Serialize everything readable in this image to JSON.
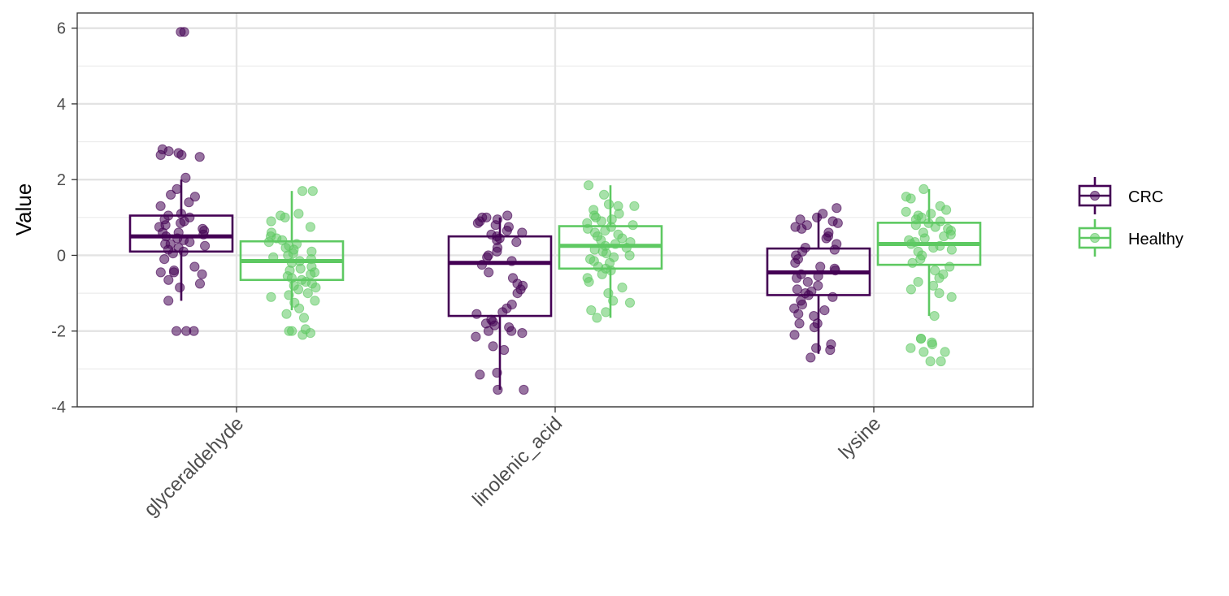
{
  "chart_data": {
    "type": "boxplot",
    "title": "",
    "xlabel": "",
    "ylabel": "Value",
    "ylim": [
      -4,
      6.4
    ],
    "yticks": [
      -4,
      -2,
      0,
      2,
      4,
      6
    ],
    "ytick_labels": [
      "-4",
      "-2",
      "0",
      "2",
      "4",
      "6"
    ],
    "grid": true,
    "legend_position": "right",
    "categories": [
      "glyceraldehyde",
      "linolenic_acid",
      "lysine"
    ],
    "series": [
      {
        "name": "CRC",
        "color": "#440154",
        "boxes": [
          {
            "category": "glyceraldehyde",
            "whisker_low": -1.2,
            "q1": 0.1,
            "median": 0.5,
            "q3": 1.05,
            "whisker_high": 2.0
          },
          {
            "category": "linolenic_acid",
            "whisker_low": -3.55,
            "q1": -1.6,
            "median": -0.2,
            "q3": 0.5,
            "whisker_high": 1.0
          },
          {
            "category": "lysine",
            "whisker_low": -2.6,
            "q1": -1.05,
            "median": -0.45,
            "q3": 0.18,
            "whisker_high": 1.1
          }
        ],
        "points": [
          [
            5.9,
            5.9,
            2.8,
            2.75,
            2.7,
            2.65,
            2.65,
            2.6,
            2.05,
            1.75,
            1.6,
            1.55,
            1.4,
            1.3,
            1.1,
            1.05,
            1.0,
            0.95,
            0.9,
            0.85,
            0.8,
            0.75,
            0.7,
            0.65,
            0.6,
            0.6,
            0.55,
            0.5,
            0.45,
            0.4,
            0.35,
            0.3,
            0.3,
            0.25,
            0.2,
            0.15,
            0.1,
            0.05,
            -0.1,
            -0.3,
            -0.4,
            -0.45,
            -0.45,
            -0.5,
            -0.65,
            -0.75,
            -0.85,
            -1.2,
            -2.0,
            -2.0,
            -2.0
          ],
          [
            1.05,
            1.0,
            1.0,
            0.95,
            0.9,
            0.85,
            0.8,
            0.75,
            0.65,
            0.6,
            0.55,
            0.5,
            0.45,
            0.4,
            0.35,
            0.2,
            0.1,
            0.0,
            -0.05,
            -0.15,
            -0.25,
            -0.45,
            -0.6,
            -0.75,
            -0.8,
            -0.9,
            -1.0,
            -1.3,
            -1.4,
            -1.5,
            -1.55,
            -1.7,
            -1.75,
            -1.8,
            -1.85,
            -1.9,
            -2.0,
            -2.0,
            -2.05,
            -2.15,
            -2.4,
            -2.5,
            -3.1,
            -3.15,
            -3.55,
            -3.55
          ],
          [
            1.25,
            1.1,
            1.0,
            0.95,
            0.9,
            0.85,
            0.8,
            0.75,
            0.7,
            0.6,
            0.5,
            0.45,
            0.3,
            0.2,
            0.15,
            0.1,
            0.0,
            -0.1,
            -0.2,
            -0.3,
            -0.35,
            -0.4,
            -0.5,
            -0.55,
            -0.6,
            -0.7,
            -0.8,
            -0.9,
            -0.95,
            -1.0,
            -1.05,
            -1.1,
            -1.2,
            -1.3,
            -1.4,
            -1.45,
            -1.55,
            -1.6,
            -1.8,
            -1.8,
            -1.9,
            -2.1,
            -2.35,
            -2.45,
            -2.5,
            -2.7
          ]
        ]
      },
      {
        "name": "Healthy",
        "color": "#5ec962",
        "boxes": [
          {
            "category": "glyceraldehyde",
            "whisker_low": -1.45,
            "q1": -0.65,
            "median": -0.15,
            "q3": 0.37,
            "whisker_high": 1.7
          },
          {
            "category": "linolenic_acid",
            "whisker_low": -1.65,
            "q1": -0.35,
            "median": 0.25,
            "q3": 0.77,
            "whisker_high": 1.85
          },
          {
            "category": "lysine",
            "whisker_low": -1.6,
            "q1": -0.25,
            "median": 0.3,
            "q3": 0.86,
            "whisker_high": 1.75
          }
        ],
        "points": [
          [
            1.7,
            1.7,
            1.1,
            1.05,
            1.0,
            0.9,
            0.75,
            0.6,
            0.5,
            0.45,
            0.4,
            0.35,
            0.3,
            0.25,
            0.2,
            0.15,
            0.1,
            0.05,
            0.0,
            -0.05,
            -0.1,
            -0.15,
            -0.2,
            -0.3,
            -0.35,
            -0.4,
            -0.45,
            -0.5,
            -0.55,
            -0.6,
            -0.65,
            -0.7,
            -0.75,
            -0.8,
            -0.85,
            -0.9,
            -1.0,
            -1.05,
            -1.1,
            -1.2,
            -1.25,
            -1.4,
            -1.55,
            -1.65,
            -1.95,
            -2.0,
            -2.0,
            -2.05,
            -2.1
          ],
          [
            1.85,
            1.6,
            1.35,
            1.3,
            1.3,
            1.2,
            1.1,
            1.05,
            1.0,
            0.95,
            0.9,
            0.85,
            0.8,
            0.75,
            0.7,
            0.65,
            0.6,
            0.55,
            0.5,
            0.45,
            0.4,
            0.35,
            0.3,
            0.25,
            0.2,
            0.15,
            0.1,
            0.05,
            0.0,
            -0.05,
            -0.1,
            -0.15,
            -0.2,
            -0.3,
            -0.35,
            -0.4,
            -0.5,
            -0.6,
            -0.7,
            -0.85,
            -1.0,
            -1.2,
            -1.25,
            -1.45,
            -1.5,
            -1.65
          ],
          [
            1.75,
            1.55,
            1.5,
            1.3,
            1.2,
            1.15,
            1.1,
            1.05,
            1.0,
            0.95,
            0.9,
            0.85,
            0.8,
            0.75,
            0.7,
            0.65,
            0.6,
            0.55,
            0.5,
            0.45,
            0.4,
            0.35,
            0.3,
            0.25,
            0.2,
            0.15,
            0.1,
            0.0,
            -0.1,
            -0.2,
            -0.3,
            -0.4,
            -0.5,
            -0.6,
            -0.7,
            -0.8,
            -0.9,
            -1.0,
            -1.1,
            -1.6,
            -2.2,
            -2.2,
            -2.3,
            -2.35,
            -2.45,
            -2.55,
            -2.55,
            -2.8,
            -2.8
          ]
        ]
      }
    ]
  }
}
